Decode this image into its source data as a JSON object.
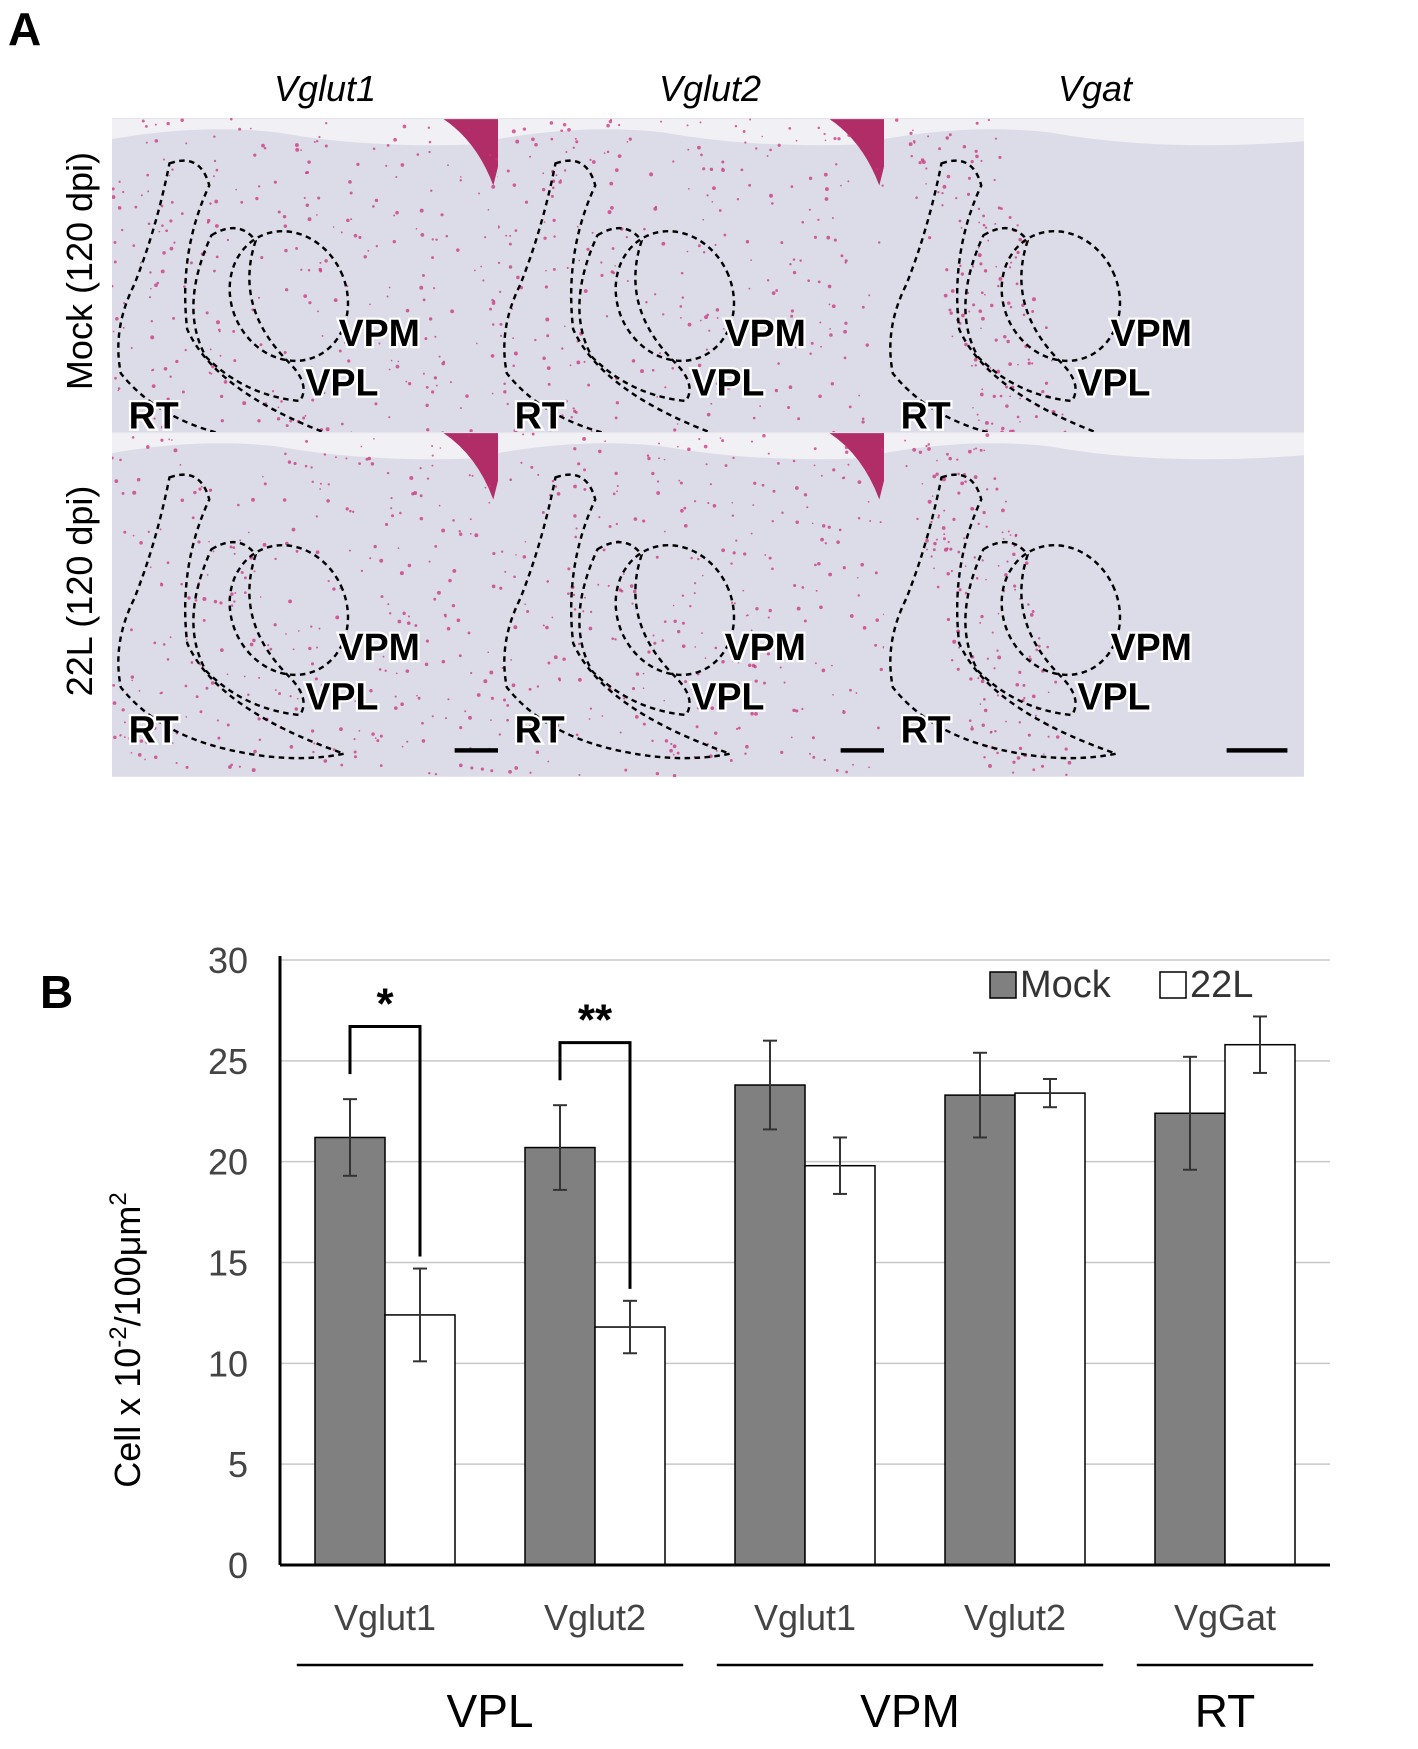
{
  "panel_a": {
    "letter": "A",
    "columns": [
      "Vglut1",
      "Vglut2",
      "Vgat"
    ],
    "rows": [
      "Mock (120 dpi)",
      "22L (120 dpi)"
    ],
    "region_labels": {
      "vpm": "VPM",
      "vpl": "VPL",
      "rt": "RT"
    },
    "colors": {
      "tissue": "#dcdbe8",
      "stain": "#c8337a"
    }
  },
  "panel_b": {
    "letter": "B"
  },
  "chart_data": {
    "type": "bar",
    "categories": [
      "Vglut1",
      "Vglut2",
      "Vglut1",
      "Vglut2",
      "VgGat"
    ],
    "groups": [
      {
        "label": "VPL",
        "categories": [
          "Vglut1",
          "Vglut2"
        ]
      },
      {
        "label": "VPM",
        "categories": [
          "Vglut1",
          "Vglut2"
        ]
      },
      {
        "label": "RT",
        "categories": [
          "VgGat"
        ]
      }
    ],
    "series": [
      {
        "name": "Mock",
        "color": "#808080",
        "values": [
          21.2,
          20.7,
          23.8,
          23.3,
          22.4
        ],
        "errors": [
          1.9,
          2.1,
          2.2,
          2.1,
          2.8
        ]
      },
      {
        "name": "22L",
        "color": "#ffffff",
        "values": [
          12.4,
          11.8,
          19.8,
          23.4,
          25.8
        ],
        "errors": [
          2.3,
          1.3,
          1.4,
          0.7,
          1.4
        ]
      }
    ],
    "ylabel": "Cell x 10-2/100μm2",
    "ylabel_parts": {
      "base": "Cell x 10",
      "sup1": "-2",
      "mid": "/100μm",
      "sup2": "2"
    },
    "ylim": [
      0,
      30
    ],
    "yticks": [
      0,
      5,
      10,
      15,
      20,
      25,
      30
    ],
    "grid": true,
    "legend_position": "top-right",
    "significance": [
      {
        "category_index": 0,
        "label": "*"
      },
      {
        "category_index": 1,
        "label": "**"
      }
    ]
  }
}
